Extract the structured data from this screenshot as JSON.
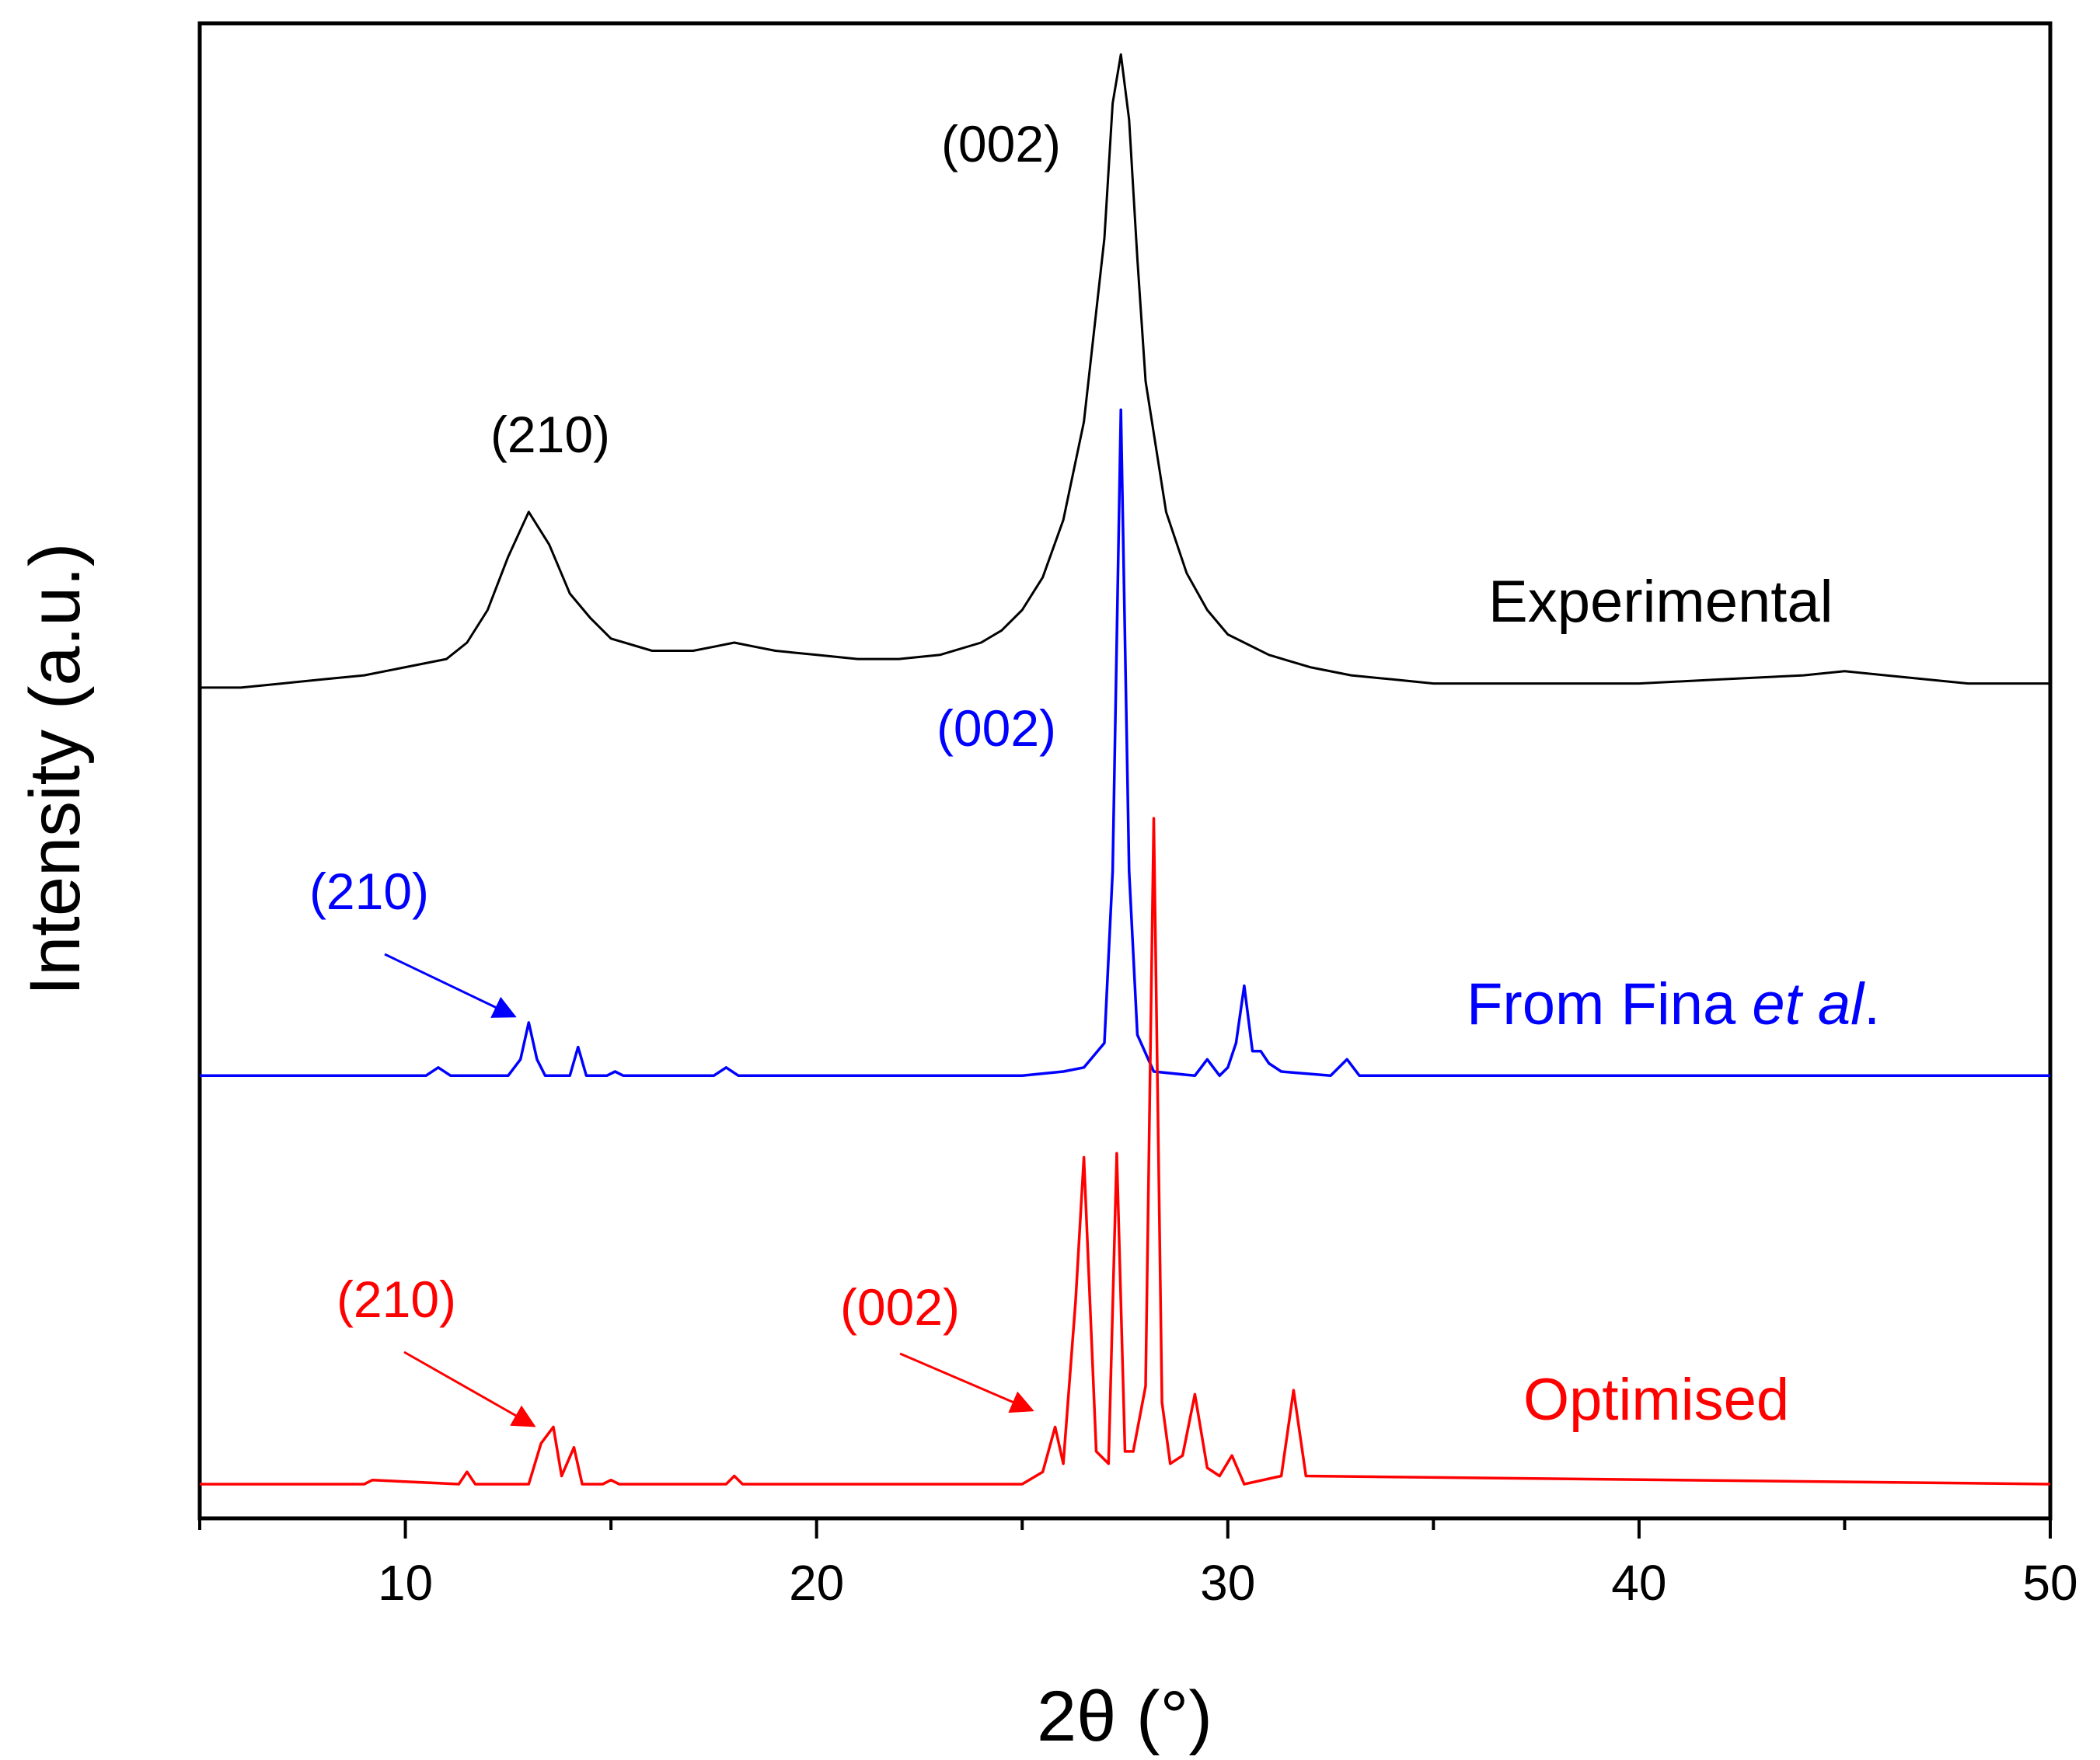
{
  "chart_data": {
    "type": "line",
    "title": "",
    "xlabel": "2θ (°)",
    "ylabel": "Intensity (a.u.)",
    "xlim": [
      5,
      50
    ],
    "ylim": [
      0,
      3.6
    ],
    "xticks": [
      10,
      20,
      30,
      40,
      50
    ],
    "xticks_minor": [
      5,
      15,
      25,
      35,
      45
    ],
    "yticks": [],
    "legend": "none",
    "grid": false,
    "series": [
      {
        "name": "Experimental",
        "label": "Experimental",
        "color": "#000000",
        "baseline": 1.95,
        "x": [
          5,
          6,
          7,
          8,
          9,
          10,
          11,
          11.5,
          12,
          12.5,
          13,
          13.5,
          14,
          14.5,
          15,
          16,
          17,
          17.5,
          18,
          18.5,
          19,
          20,
          21,
          22,
          23,
          24,
          24.5,
          25,
          25.5,
          26,
          26.5,
          27,
          27.2,
          27.4,
          27.6,
          27.8,
          28,
          28.5,
          29,
          29.5,
          30,
          31,
          32,
          33,
          34,
          35,
          36,
          38,
          40,
          42,
          44,
          45,
          46,
          48,
          50
        ],
        "y": [
          1.95,
          1.95,
          1.96,
          1.97,
          1.98,
          2.0,
          2.02,
          2.06,
          2.14,
          2.27,
          2.38,
          2.3,
          2.18,
          2.12,
          2.07,
          2.04,
          2.04,
          2.05,
          2.06,
          2.05,
          2.04,
          2.03,
          2.02,
          2.02,
          2.03,
          2.06,
          2.09,
          2.14,
          2.22,
          2.36,
          2.6,
          3.05,
          3.38,
          3.5,
          3.34,
          3.0,
          2.7,
          2.38,
          2.23,
          2.14,
          2.08,
          2.03,
          2.0,
          1.98,
          1.97,
          1.96,
          1.96,
          1.96,
          1.96,
          1.97,
          1.98,
          1.99,
          1.98,
          1.96,
          1.96
        ]
      },
      {
        "name": "From Fina et al.",
        "label": "From Fina ",
        "label_italic": "et al",
        "label_suffix": ".",
        "color": "#0000ff",
        "baseline": 1.0,
        "x": [
          5,
          10.5,
          10.8,
          11.1,
          12.5,
          12.8,
          13.0,
          13.2,
          13.4,
          14.0,
          14.2,
          14.4,
          14.9,
          15.1,
          15.3,
          17.5,
          17.8,
          18.1,
          25,
          26,
          26.5,
          27.0,
          27.2,
          27.4,
          27.6,
          27.8,
          28.2,
          29.2,
          29.5,
          29.8,
          30.0,
          30.2,
          30.4,
          30.6,
          30.8,
          31.0,
          31.3,
          32.5,
          32.9,
          33.2,
          50
        ],
        "y": [
          1.0,
          1.0,
          1.02,
          1.0,
          1.0,
          1.04,
          1.13,
          1.04,
          1.0,
          1.0,
          1.07,
          1.0,
          1.0,
          1.01,
          1.0,
          1.0,
          1.02,
          1.0,
          1.0,
          1.01,
          1.02,
          1.08,
          1.5,
          2.63,
          1.5,
          1.1,
          1.01,
          1.0,
          1.04,
          1.0,
          1.02,
          1.08,
          1.22,
          1.06,
          1.06,
          1.03,
          1.01,
          1.0,
          1.04,
          1.0,
          1.0
        ]
      },
      {
        "name": "Optimised",
        "label": "Optimised",
        "color": "#ff0000",
        "baseline": 0.0,
        "x": [
          5,
          9.0,
          9.2,
          11.3,
          11.5,
          11.7,
          13.0,
          13.3,
          13.6,
          13.8,
          14.1,
          14.3,
          14.8,
          15.0,
          15.2,
          17.8,
          18.0,
          18.2,
          25,
          25.5,
          25.8,
          26.0,
          26.3,
          26.5,
          26.8,
          27.1,
          27.3,
          27.5,
          27.7,
          28.0,
          28.2,
          28.4,
          28.6,
          28.9,
          29.2,
          29.5,
          29.8,
          30.1,
          30.4,
          31.3,
          31.6,
          31.9,
          50
        ],
        "y": [
          0.0,
          0.0,
          0.01,
          0.0,
          0.03,
          0.0,
          0.0,
          0.1,
          0.14,
          0.02,
          0.09,
          0.0,
          0.0,
          0.01,
          0.0,
          0.0,
          0.02,
          0.0,
          0.0,
          0.03,
          0.14,
          0.05,
          0.45,
          0.8,
          0.08,
          0.05,
          0.81,
          0.08,
          0.08,
          0.24,
          1.63,
          0.2,
          0.05,
          0.07,
          0.22,
          0.04,
          0.02,
          0.07,
          0.0,
          0.02,
          0.23,
          0.02,
          0.0
        ]
      }
    ],
    "annotations": [
      {
        "text": "(002)",
        "series": "Experimental",
        "color": "#000000",
        "arrow": false
      },
      {
        "text": "(210)",
        "series": "Experimental",
        "color": "#000000",
        "arrow": false
      },
      {
        "text": "(002)",
        "series": "From Fina et al.",
        "color": "#0000ff",
        "arrow": false
      },
      {
        "text": "(210)",
        "series": "From Fina et al.",
        "color": "#0000ff",
        "arrow": true,
        "target_x": 13.0
      },
      {
        "text": "(210)",
        "series": "Optimised",
        "color": "#ff0000",
        "arrow": true,
        "target_x": 13.6
      },
      {
        "text": "(002)",
        "series": "Optimised",
        "color": "#ff0000",
        "arrow": true,
        "target_x": 25.7
      }
    ]
  }
}
